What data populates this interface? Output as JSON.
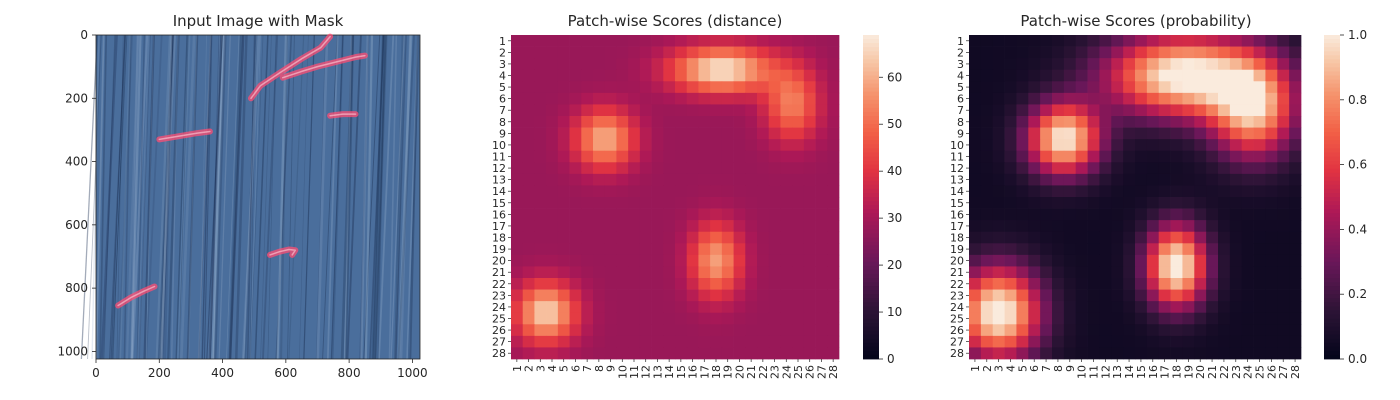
{
  "chart_data": [
    {
      "type": "image",
      "title": "Input Image with Mask",
      "xlim": [
        0,
        1024
      ],
      "ylim": [
        1024,
        0
      ],
      "xticks": [
        0,
        200,
        400,
        600,
        800,
        1000
      ],
      "yticks": [
        0,
        200,
        400,
        600,
        800,
        1000
      ],
      "background_color": "#4a6e9c",
      "mask_color": "#ff4d73",
      "mask_polylines": [
        [
          [
            490,
            200
          ],
          [
            520,
            160
          ],
          [
            580,
            120
          ],
          [
            650,
            75
          ],
          [
            710,
            40
          ],
          [
            740,
            5
          ]
        ],
        [
          [
            590,
            135
          ],
          [
            650,
            115
          ],
          [
            700,
            100
          ],
          [
            760,
            85
          ],
          [
            820,
            70
          ],
          [
            850,
            65
          ]
        ],
        [
          [
            200,
            330
          ],
          [
            260,
            320
          ],
          [
            320,
            310
          ],
          [
            360,
            305
          ]
        ],
        [
          [
            740,
            255
          ],
          [
            780,
            250
          ],
          [
            820,
            250
          ]
        ],
        [
          [
            550,
            695
          ],
          [
            580,
            685
          ],
          [
            610,
            678
          ],
          [
            630,
            680
          ],
          [
            620,
            695
          ]
        ],
        [
          [
            70,
            855
          ],
          [
            110,
            830
          ],
          [
            150,
            810
          ],
          [
            185,
            795
          ]
        ]
      ]
    },
    {
      "type": "heatmap",
      "title": "Patch-wise Scores (distance)",
      "rows": 28,
      "cols": 28,
      "vmin": 0,
      "vmax": 69,
      "colorbar_ticks": [
        0,
        10,
        20,
        30,
        40,
        50,
        60
      ],
      "colormap": "rocket",
      "base_value": 28,
      "blobs": [
        {
          "center_col": 18.5,
          "center_row": 3.5,
          "spread_col": 3.0,
          "spread_row": 1.4,
          "peak": 40
        },
        {
          "center_col": 24.5,
          "center_row": 6.5,
          "spread_col": 1.6,
          "spread_row": 2.2,
          "peak": 25
        },
        {
          "center_col": 8.5,
          "center_row": 9.5,
          "spread_col": 1.8,
          "spread_row": 1.8,
          "peak": 32
        },
        {
          "center_col": 3.5,
          "center_row": 24.5,
          "spread_col": 1.8,
          "spread_row": 1.8,
          "peak": 37
        },
        {
          "center_col": 18.0,
          "center_row": 20.0,
          "spread_col": 1.5,
          "spread_row": 2.2,
          "peak": 30
        }
      ]
    },
    {
      "type": "heatmap",
      "title": "Patch-wise Scores (probability)",
      "rows": 28,
      "cols": 28,
      "vmin": 0,
      "vmax": 1,
      "colorbar_ticks": [
        0.0,
        0.2,
        0.4,
        0.6,
        0.8,
        1.0
      ],
      "colormap": "rocket",
      "base_value": 0.05,
      "blobs": [
        {
          "center_col": 18.5,
          "center_row": 4.0,
          "spread_col": 4.5,
          "spread_row": 2.5,
          "peak": 1.0
        },
        {
          "center_col": 24.5,
          "center_row": 7.0,
          "spread_col": 2.5,
          "spread_row": 3.0,
          "peak": 0.8
        },
        {
          "center_col": 8.5,
          "center_row": 9.5,
          "spread_col": 2.2,
          "spread_row": 2.2,
          "peak": 0.95
        },
        {
          "center_col": 3.0,
          "center_row": 24.5,
          "spread_col": 2.5,
          "spread_row": 2.8,
          "peak": 1.0
        },
        {
          "center_col": 18.0,
          "center_row": 20.5,
          "spread_col": 1.8,
          "spread_row": 2.5,
          "peak": 1.0
        }
      ]
    }
  ]
}
